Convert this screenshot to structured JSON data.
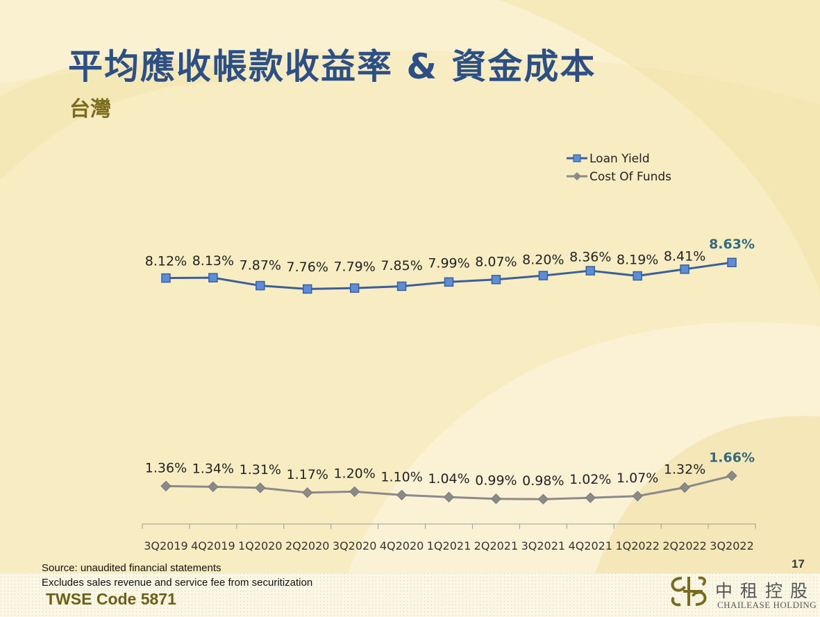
{
  "header": {
    "title": "平均應收帳款收益率 & 資金成本",
    "subtitle": "台灣"
  },
  "colors": {
    "title": "#2c4f86",
    "subtitle": "#7a6b1e",
    "loan_yield": "#3b5f99",
    "loan_yield_marker": "#5b8ed6",
    "cost_of_funds": "#8a8a8a",
    "highlight_label": "#2f6a80",
    "background": "#f7ecc2"
  },
  "chart_data": {
    "type": "line",
    "categories": [
      "3Q2019",
      "4Q2019",
      "1Q2020",
      "2Q2020",
      "3Q2020",
      "4Q2020",
      "1Q2021",
      "2Q2021",
      "3Q2021",
      "4Q2021",
      "1Q2022",
      "2Q2022",
      "3Q2022"
    ],
    "series": [
      {
        "name": "Loan Yield",
        "values": [
          8.12,
          8.13,
          7.87,
          7.76,
          7.79,
          7.85,
          7.99,
          8.07,
          8.2,
          8.36,
          8.19,
          8.41,
          8.63
        ],
        "labels": [
          "8.12%",
          "8.13%",
          "7.87%",
          "7.76%",
          "7.79%",
          "7.85%",
          "7.99%",
          "8.07%",
          "8.20%",
          "8.36%",
          "8.19%",
          "8.41%",
          "8.63%"
        ],
        "marker": "square"
      },
      {
        "name": "Cost Of Funds",
        "values": [
          1.36,
          1.34,
          1.31,
          1.17,
          1.2,
          1.1,
          1.04,
          0.99,
          0.98,
          1.02,
          1.07,
          1.32,
          1.66
        ],
        "labels": [
          "1.36%",
          "1.34%",
          "1.31%",
          "1.17%",
          "1.20%",
          "1.10%",
          "1.04%",
          "0.99%",
          "0.98%",
          "1.02%",
          "1.07%",
          "1.32%",
          "1.66%"
        ],
        "marker": "diamond"
      }
    ],
    "highlight_last_label": true,
    "legend_position": "top-right",
    "grid": false
  },
  "footer": {
    "source": "Source: unaudited financial statements",
    "note": "Excludes sales revenue and service fee from securitization",
    "twse": "TWSE Code 5871",
    "page": "17",
    "logo_cn": "中租控股",
    "logo_en": "CHAILEASE HOLDING"
  }
}
